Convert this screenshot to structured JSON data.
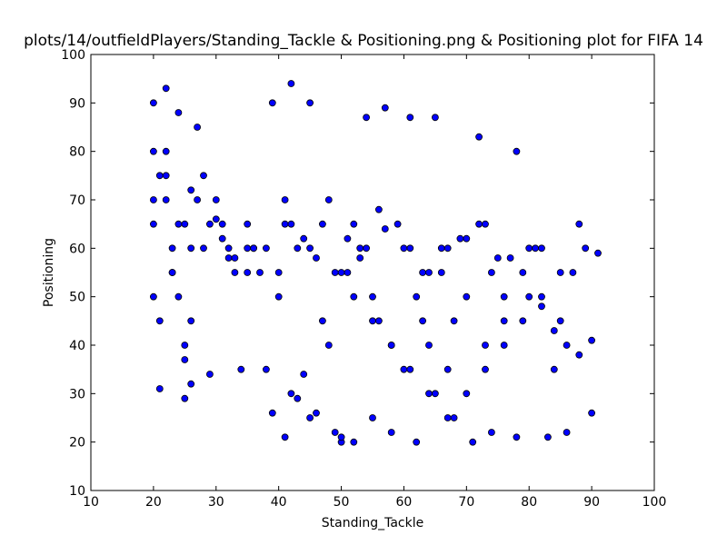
{
  "chart_data": {
    "type": "scatter",
    "title": "plots/14/outfieldPlayers/Standing_Tackle & Positioning.png & Positioning plot for FIFA 14",
    "xlabel": "Standing_Tackle",
    "ylabel": "Positioning",
    "xlim": [
      10,
      100
    ],
    "ylim": [
      10,
      100
    ],
    "xticks": [
      10,
      20,
      30,
      40,
      50,
      60,
      70,
      80,
      90,
      100
    ],
    "yticks": [
      10,
      20,
      30,
      40,
      50,
      60,
      70,
      80,
      90,
      100
    ],
    "grid": false,
    "legend": "none",
    "marker_color": "#0000ff",
    "marker_edge": "#000000",
    "series": [
      {
        "x": [
          20,
          20,
          20,
          21,
          21,
          22,
          22,
          23,
          23,
          24,
          24,
          25,
          25,
          25,
          26,
          26,
          27,
          28,
          29,
          30,
          31,
          32,
          33,
          34,
          35,
          36,
          38,
          39,
          40,
          41,
          42,
          43,
          44,
          45,
          46,
          47,
          48,
          50,
          51,
          52,
          53,
          54,
          55,
          56,
          57,
          58,
          60,
          61,
          62,
          63,
          64,
          65,
          66,
          67,
          68,
          70,
          72,
          73,
          74,
          76,
          78,
          80,
          82,
          84,
          86,
          88,
          90,
          91,
          21,
          25,
          39,
          41,
          42,
          45,
          49,
          50,
          52,
          55,
          58,
          62,
          65,
          68,
          71,
          74,
          78,
          83,
          90,
          88,
          86,
          84,
          22,
          26,
          30,
          35,
          40,
          44,
          48,
          53,
          57,
          61,
          66,
          70,
          75,
          80,
          85,
          89,
          20,
          24,
          28,
          33,
          37,
          43,
          47,
          51,
          56,
          60,
          64,
          69,
          73,
          77,
          81,
          87,
          22,
          27,
          31,
          36,
          41,
          46,
          50,
          54,
          59,
          63,
          67,
          72,
          76,
          79,
          82,
          20,
          23,
          26,
          29,
          32,
          35,
          38,
          42,
          45,
          49,
          52,
          55,
          58,
          61,
          64,
          67,
          70,
          73,
          76,
          79,
          82,
          85
        ],
        "y": [
          90,
          80,
          65,
          75,
          31,
          93,
          70,
          60,
          55,
          88,
          50,
          29,
          40,
          65,
          45,
          32,
          85,
          75,
          34,
          70,
          62,
          58,
          55,
          35,
          65,
          60,
          35,
          90,
          50,
          21,
          94,
          29,
          34,
          90,
          26,
          45,
          40,
          20,
          55,
          65,
          60,
          87,
          50,
          45,
          89,
          40,
          35,
          87,
          50,
          45,
          40,
          87,
          60,
          35,
          45,
          50,
          83,
          40,
          55,
          45,
          80,
          50,
          48,
          35,
          40,
          38,
          41,
          59,
          45,
          37,
          26,
          70,
          30,
          25,
          22,
          21,
          20,
          25,
          22,
          20,
          30,
          25,
          20,
          22,
          21,
          21,
          26,
          65,
          22,
          43,
          80,
          72,
          66,
          60,
          55,
          62,
          70,
          58,
          64,
          60,
          55,
          62,
          58,
          60,
          55,
          60,
          70,
          65,
          60,
          58,
          55,
          60,
          65,
          62,
          68,
          60,
          55,
          62,
          65,
          58,
          60,
          55,
          75,
          70,
          65,
          60,
          65,
          58,
          55,
          60,
          65,
          55,
          60,
          65,
          50,
          55,
          60,
          50,
          55,
          60,
          65,
          60,
          55,
          60,
          65,
          60,
          55,
          50,
          45,
          40,
          35,
          30,
          25,
          30,
          35,
          40,
          45,
          50,
          45
        ]
      }
    ]
  }
}
